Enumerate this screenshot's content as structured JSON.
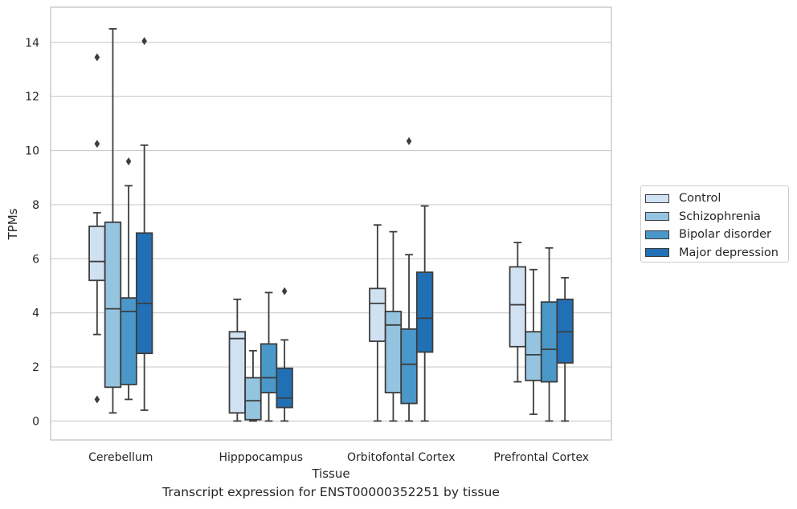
{
  "chart_data": {
    "type": "box",
    "title": "",
    "caption": "Transcript expression for ENST00000352251 by tissue",
    "xlabel": "Tissue",
    "ylabel": "TPMs",
    "ylim": [
      -0.7,
      15.3
    ],
    "yticks": [
      0,
      2,
      4,
      6,
      8,
      10,
      12,
      14
    ],
    "grid": "horizontal",
    "legend_position": "right",
    "categories": [
      "Cerebellum",
      "Hipppocampus",
      "Orbitofontal Cortex",
      "Prefrontal Cortex"
    ],
    "series": [
      {
        "name": "Control",
        "color": "#d0e1f2",
        "boxes": [
          {
            "low": 3.2,
            "q1": 5.2,
            "median": 5.9,
            "q3": 7.2,
            "high": 7.7,
            "outliers": [
              13.45,
              10.25,
              0.8
            ]
          },
          {
            "low": 0.0,
            "q1": 0.3,
            "median": 3.05,
            "q3": 3.3,
            "high": 4.5,
            "outliers": []
          },
          {
            "low": 0.0,
            "q1": 2.95,
            "median": 4.35,
            "q3": 4.9,
            "high": 7.25,
            "outliers": []
          },
          {
            "low": 1.45,
            "q1": 2.75,
            "median": 4.3,
            "q3": 5.7,
            "high": 6.6,
            "outliers": []
          }
        ]
      },
      {
        "name": "Schizophrenia",
        "color": "#94c4df",
        "boxes": [
          {
            "low": 0.3,
            "q1": 1.25,
            "median": 4.15,
            "q3": 7.35,
            "high": 14.5,
            "outliers": []
          },
          {
            "low": 0.0,
            "q1": 0.05,
            "median": 0.75,
            "q3": 1.6,
            "high": 2.6,
            "outliers": []
          },
          {
            "low": 0.0,
            "q1": 1.05,
            "median": 3.55,
            "q3": 4.05,
            "high": 7.0,
            "outliers": []
          },
          {
            "low": 0.25,
            "q1": 1.5,
            "median": 2.45,
            "q3": 3.3,
            "high": 5.6,
            "outliers": []
          }
        ]
      },
      {
        "name": "Bipolar disorder",
        "color": "#4a98c9",
        "boxes": [
          {
            "low": 0.8,
            "q1": 1.35,
            "median": 4.05,
            "q3": 4.55,
            "high": 8.7,
            "outliers": [
              9.6
            ]
          },
          {
            "low": 0.0,
            "q1": 1.05,
            "median": 1.6,
            "q3": 2.85,
            "high": 4.75,
            "outliers": []
          },
          {
            "low": 0.0,
            "q1": 0.65,
            "median": 2.1,
            "q3": 3.4,
            "high": 6.15,
            "outliers": [
              10.35
            ]
          },
          {
            "low": 0.0,
            "q1": 1.45,
            "median": 2.65,
            "q3": 4.4,
            "high": 6.4,
            "outliers": []
          }
        ]
      },
      {
        "name": "Major depression",
        "color": "#2170b5",
        "boxes": [
          {
            "low": 0.4,
            "q1": 2.5,
            "median": 4.35,
            "q3": 6.95,
            "high": 10.2,
            "outliers": [
              14.05
            ]
          },
          {
            "low": 0.0,
            "q1": 0.5,
            "median": 0.85,
            "q3": 1.95,
            "high": 3.0,
            "outliers": [
              4.8
            ]
          },
          {
            "low": 0.0,
            "q1": 2.55,
            "median": 3.8,
            "q3": 5.5,
            "high": 7.95,
            "outliers": []
          },
          {
            "low": 0.0,
            "q1": 2.15,
            "median": 3.3,
            "q3": 4.5,
            "high": 5.3,
            "outliers": []
          }
        ]
      }
    ]
  }
}
